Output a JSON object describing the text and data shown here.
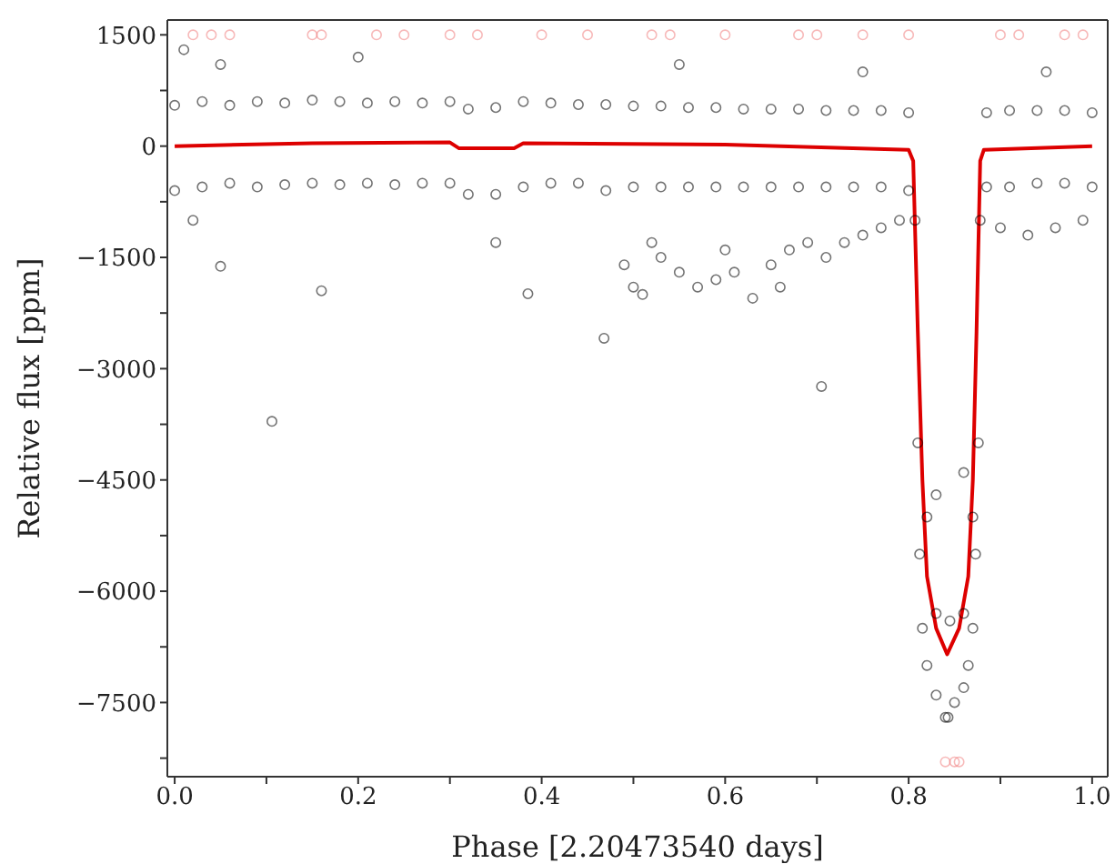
{
  "chart_data": {
    "type": "scatter",
    "xlabel": "Phase [2.20473540 days]",
    "ylabel": "Relative flux [ppm]",
    "xlim": [
      -0.008,
      1.017
    ],
    "ylim": [
      -8500,
      1700
    ],
    "xticks": [
      {
        "value": 0,
        "label": "0.0"
      },
      {
        "value": 0.1,
        "label": null
      },
      {
        "value": 0.2,
        "label": "0.2"
      },
      {
        "value": 0.3,
        "label": null
      },
      {
        "value": 0.4,
        "label": "0.4"
      },
      {
        "value": 0.5,
        "label": null
      },
      {
        "value": 0.6,
        "label": "0.6"
      },
      {
        "value": 0.7,
        "label": null
      },
      {
        "value": 0.8,
        "label": "0.8"
      },
      {
        "value": 0.9,
        "label": null
      },
      {
        "value": 1,
        "label": "1.0"
      }
    ],
    "yticks": [
      {
        "value": -8250,
        "label": null
      },
      -7500,
      {
        "value": -6750,
        "label": null
      },
      -6000,
      {
        "value": -5250,
        "label": null
      },
      -4500,
      {
        "value": -3750,
        "label": null
      },
      -3000,
      {
        "value": -2250,
        "label": null
      },
      -1500,
      {
        "value": -750,
        "label": null
      },
      0,
      {
        "value": 750,
        "label": null
      },
      1500
    ],
    "marker": "circle",
    "series": [
      {
        "color": "#000000",
        "x": [
          0,
          0,
          0.03,
          0.03,
          0.06,
          0.06,
          0.09,
          0.09,
          0.12,
          0.12,
          0.15,
          0.15,
          0.18,
          0.18,
          0.21,
          0.21,
          0.24,
          0.24,
          0.27,
          0.27,
          0.3,
          0.3,
          0.32,
          0.32,
          0.35,
          0.35,
          0.38,
          0.38,
          0.41,
          0.41,
          0.44,
          0.44,
          0.47,
          0.47,
          0.5,
          0.5,
          0.53,
          0.53,
          0.56,
          0.56,
          0.59,
          0.59,
          0.62,
          0.62,
          0.65,
          0.65,
          0.68,
          0.68,
          0.71,
          0.71,
          0.74,
          0.74,
          0.77,
          0.77,
          0.8,
          0.8,
          0.885,
          0.885,
          0.91,
          0.91,
          0.94,
          0.94,
          0.97,
          0.97,
          1,
          1,
          0.01,
          0.05,
          0.02,
          0.05,
          0.106,
          0.16,
          0.2,
          0.35,
          0.385,
          0.468,
          0.705,
          0.55,
          0.75,
          0.95,
          0.49,
          0.5,
          0.51,
          0.53,
          0.55,
          0.57,
          0.59,
          0.61,
          0.63,
          0.65,
          0.67,
          0.69,
          0.71,
          0.73,
          0.75,
          0.77,
          0.79,
          0.9,
          0.93,
          0.96,
          0.99,
          0.52,
          0.6,
          0.66,
          0.807,
          0.81,
          0.812,
          0.815,
          0.82,
          0.83,
          0.84,
          0.843,
          0.85,
          0.86,
          0.865,
          0.87,
          0.873,
          0.876,
          0.878,
          0.83,
          0.845,
          0.86,
          0.82,
          0.87,
          0.83,
          0.86
        ],
        "values": [
          550,
          -600,
          600,
          -550,
          550,
          -500,
          600,
          -550,
          580,
          -520,
          620,
          -500,
          600,
          -520,
          580,
          -500,
          600,
          -520,
          580,
          -500,
          600,
          -500,
          500,
          -650,
          520,
          -650,
          600,
          -550,
          580,
          -500,
          560,
          -500,
          560,
          -600,
          540,
          -550,
          540,
          -550,
          520,
          -550,
          520,
          -550,
          500,
          -550,
          500,
          -550,
          500,
          -550,
          480,
          -550,
          480,
          -550,
          480,
          -550,
          450,
          -600,
          450,
          -550,
          480,
          -550,
          480,
          -500,
          480,
          -500,
          450,
          -550,
          1300,
          1100,
          -1000,
          -1620,
          -3710,
          -1950,
          1200,
          -1300,
          -1990,
          -2590,
          -3240,
          1100,
          1000,
          1000,
          -1600,
          -1900,
          -2000,
          -1500,
          -1700,
          -1900,
          -1800,
          -1700,
          -2050,
          -1600,
          -1400,
          -1300,
          -1500,
          -1300,
          -1200,
          -1100,
          -1000,
          -1100,
          -1200,
          -1100,
          -1000,
          -1300,
          -1400,
          -1900,
          -1000,
          -4000,
          -5500,
          -6500,
          -7000,
          -7400,
          -7700,
          -7700,
          -7500,
          -7300,
          -7000,
          -6500,
          -5500,
          -4000,
          -1000,
          -6300,
          -6400,
          -6300,
          -5000,
          -5000,
          -4700,
          -4400
        ]
      },
      {
        "color": "#f08080",
        "x": [
          0.02,
          0.04,
          0.06,
          0.15,
          0.16,
          0.22,
          0.25,
          0.3,
          0.33,
          0.4,
          0.45,
          0.52,
          0.54,
          0.6,
          0.68,
          0.7,
          0.75,
          0.8,
          0.9,
          0.92,
          0.97,
          0.99,
          0.84,
          0.85,
          0.855
        ],
        "values": [
          1500,
          1500,
          1500,
          1500,
          1500,
          1500,
          1500,
          1500,
          1500,
          1500,
          1500,
          1500,
          1500,
          1500,
          1500,
          1500,
          1500,
          1500,
          1500,
          1500,
          1500,
          1500,
          -8300,
          -8300,
          -8300
        ]
      },
      {
        "type": "line",
        "color": "#dd0000",
        "marker": "none",
        "x": [
          0,
          0.15,
          0.3,
          0.31,
          0.37,
          0.38,
          0.6,
          0.8,
          0.805,
          0.81,
          0.815,
          0.82,
          0.83,
          0.842,
          0.855,
          0.865,
          0.87,
          0.874,
          0.878,
          0.882,
          1
        ],
        "values": [
          0,
          40,
          50,
          -30,
          -30,
          40,
          20,
          -50,
          -200,
          -2500,
          -4500,
          -5800,
          -6500,
          -6850,
          -6500,
          -5800,
          -4500,
          -2500,
          -200,
          -50,
          0
        ]
      }
    ]
  }
}
